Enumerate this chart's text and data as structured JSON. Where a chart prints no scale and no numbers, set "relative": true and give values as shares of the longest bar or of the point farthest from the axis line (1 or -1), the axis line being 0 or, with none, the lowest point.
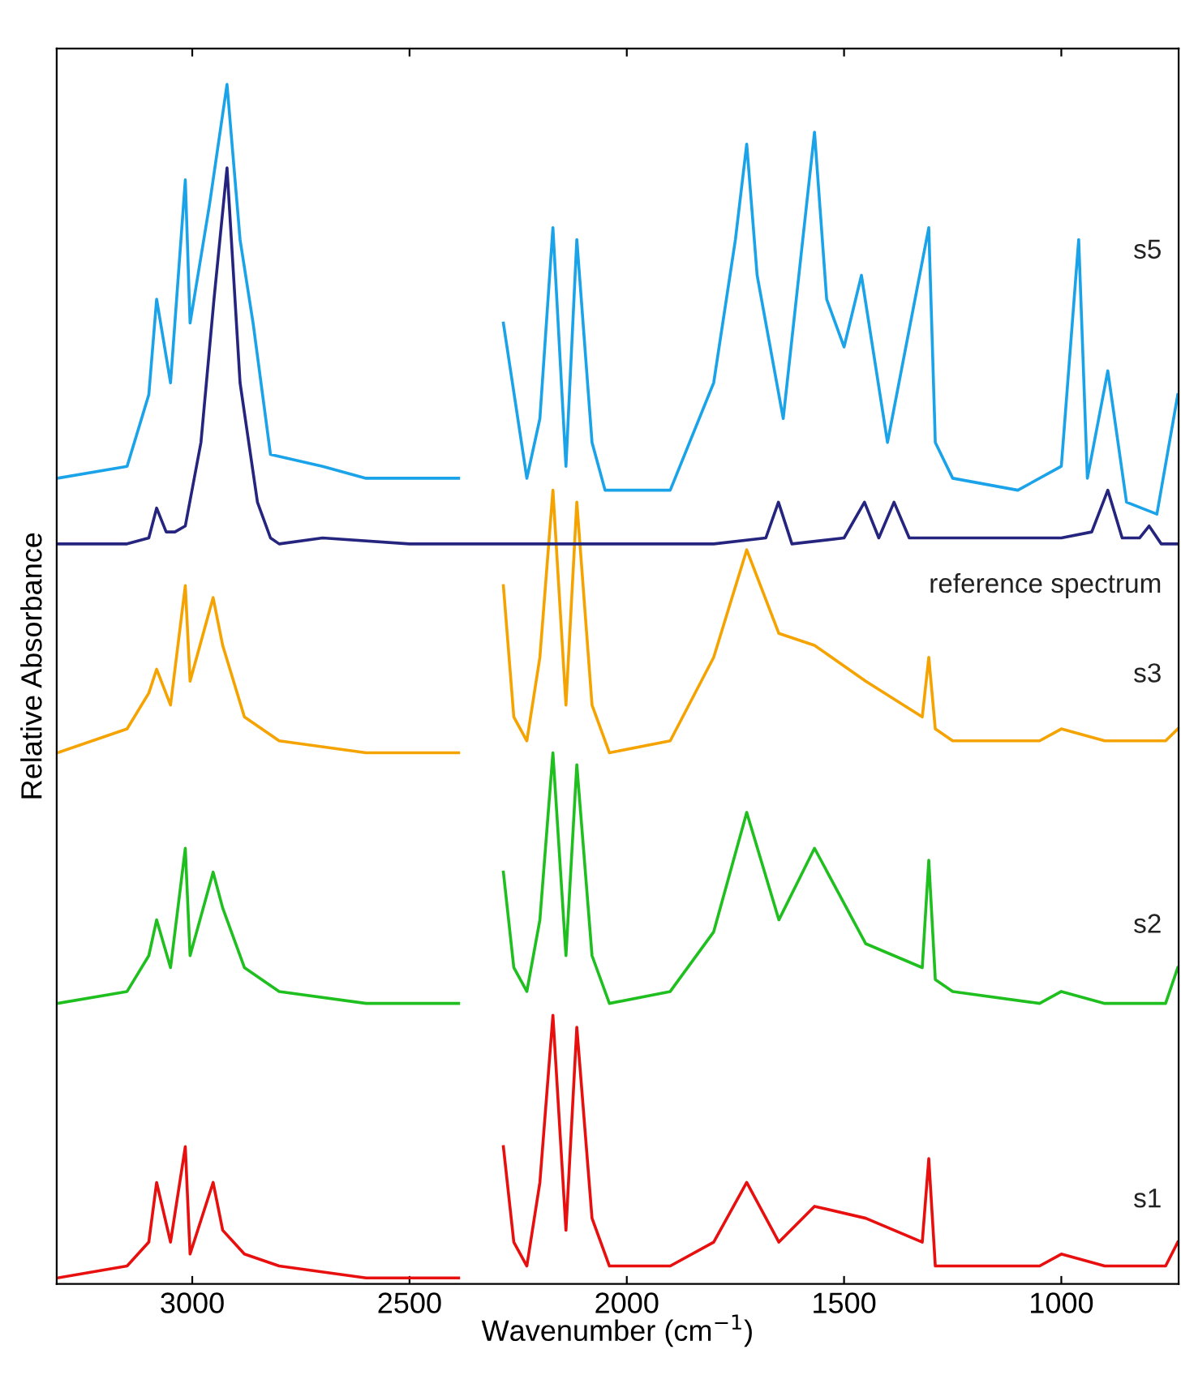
{
  "chart_data": {
    "type": "line",
    "relative": true,
    "xlabel": "Wavenumber (cm$^{−1}$)",
    "ylabel": "Relative Absorbance",
    "xlim": [
      3312,
      730
    ],
    "xticks": [
      3000,
      2500,
      2000,
      1500,
      1000
    ],
    "grid": false,
    "legend": false,
    "tick_labels": "x",
    "marker": "none",
    "line_style": "solid",
    "series": [
      {
        "name": "s1",
        "color": "#e8100f",
        "x": [
          3310,
          3150,
          3100,
          3082,
          3050,
          3016,
          3005,
          2952,
          2930,
          2880,
          2800,
          2600,
          2387,
          2384,
          2284,
          2260,
          2230,
          2200,
          2170,
          2140,
          2115,
          2080,
          2040,
          1900,
          1800,
          1724,
          1650,
          1568,
          1450,
          1320,
          1305,
          1290,
          1250,
          1050,
          1000,
          900,
          760,
          732
        ],
        "values": [
          0.0,
          0.01,
          0.03,
          0.08,
          0.03,
          0.11,
          0.02,
          0.08,
          0.04,
          0.02,
          0.01,
          0.0,
          0.0,
          null,
          0.11,
          0.03,
          0.01,
          0.08,
          0.22,
          0.04,
          0.21,
          0.05,
          0.01,
          0.01,
          0.03,
          0.08,
          0.03,
          0.06,
          0.05,
          0.03,
          0.1,
          0.01,
          0.01,
          0.01,
          0.02,
          0.01,
          0.01,
          0.03
        ]
      },
      {
        "name": "s2",
        "color": "#1fbf1f",
        "x": [
          3310,
          3150,
          3100,
          3082,
          3050,
          3016,
          3005,
          2952,
          2930,
          2880,
          2800,
          2600,
          2387,
          2384,
          2284,
          2260,
          2230,
          2200,
          2170,
          2140,
          2115,
          2080,
          2040,
          1900,
          1800,
          1724,
          1650,
          1568,
          1450,
          1320,
          1305,
          1290,
          1250,
          1050,
          1000,
          900,
          760,
          732
        ],
        "values": [
          0.23,
          0.24,
          0.27,
          0.3,
          0.26,
          0.36,
          0.27,
          0.34,
          0.31,
          0.26,
          0.24,
          0.23,
          0.23,
          null,
          0.34,
          0.26,
          0.24,
          0.3,
          0.44,
          0.27,
          0.43,
          0.27,
          0.23,
          0.24,
          0.29,
          0.39,
          0.3,
          0.36,
          0.28,
          0.26,
          0.35,
          0.25,
          0.24,
          0.23,
          0.24,
          0.23,
          0.23,
          0.26
        ]
      },
      {
        "name": "s3",
        "color": "#f5a300",
        "x": [
          3310,
          3150,
          3100,
          3082,
          3050,
          3016,
          3005,
          2952,
          2930,
          2880,
          2800,
          2600,
          2387,
          2384,
          2284,
          2260,
          2230,
          2200,
          2170,
          2140,
          2115,
          2080,
          2040,
          1900,
          1800,
          1724,
          1650,
          1568,
          1450,
          1320,
          1305,
          1290,
          1250,
          1050,
          1000,
          900,
          760,
          732
        ],
        "values": [
          0.44,
          0.46,
          0.49,
          0.51,
          0.48,
          0.58,
          0.5,
          0.57,
          0.53,
          0.47,
          0.45,
          0.44,
          0.44,
          null,
          0.58,
          0.47,
          0.45,
          0.52,
          0.66,
          0.48,
          0.65,
          0.48,
          0.44,
          0.45,
          0.52,
          0.61,
          0.54,
          0.53,
          0.5,
          0.47,
          0.52,
          0.46,
          0.45,
          0.45,
          0.46,
          0.45,
          0.45,
          0.46
        ]
      },
      {
        "name": "reference spectrum",
        "color": "#25257f",
        "x": [
          3310,
          3150,
          3100,
          3082,
          3060,
          3040,
          3016,
          2980,
          2950,
          2920,
          2890,
          2850,
          2820,
          2800,
          2700,
          2500,
          2200,
          1800,
          1680,
          1651,
          1620,
          1500,
          1453,
          1420,
          1385,
          1350,
          1200,
          1000,
          930,
          893,
          860,
          820,
          798,
          770,
          732
        ],
        "values": [
          0.615,
          0.615,
          0.62,
          0.645,
          0.625,
          0.625,
          0.63,
          0.7,
          0.82,
          0.93,
          0.75,
          0.65,
          0.62,
          0.615,
          0.62,
          0.615,
          0.615,
          0.615,
          0.62,
          0.65,
          0.615,
          0.62,
          0.65,
          0.62,
          0.65,
          0.62,
          0.62,
          0.62,
          0.625,
          0.66,
          0.62,
          0.62,
          0.63,
          0.615,
          0.615
        ]
      },
      {
        "name": "s5",
        "color": "#1aa3e8",
        "x": [
          3310,
          3150,
          3100,
          3082,
          3050,
          3016,
          3005,
          2960,
          2920,
          2890,
          2860,
          2820,
          2700,
          2600,
          2387,
          2384,
          2284,
          2230,
          2200,
          2170,
          2140,
          2115,
          2080,
          2050,
          1900,
          1800,
          1750,
          1724,
          1700,
          1640,
          1568,
          1540,
          1500,
          1460,
          1400,
          1305,
          1290,
          1250,
          1100,
          1000,
          960,
          940,
          893,
          850,
          780,
          732
        ],
        "values": [
          0.67,
          0.68,
          0.74,
          0.82,
          0.75,
          0.92,
          0.8,
          0.9,
          1.0,
          0.87,
          0.8,
          0.69,
          0.68,
          0.67,
          0.67,
          null,
          0.8,
          0.67,
          0.72,
          0.88,
          0.68,
          0.87,
          0.7,
          0.66,
          0.66,
          0.75,
          0.87,
          0.95,
          0.84,
          0.72,
          0.96,
          0.82,
          0.78,
          0.84,
          0.7,
          0.88,
          0.7,
          0.67,
          0.66,
          0.68,
          0.87,
          0.67,
          0.76,
          0.65,
          0.64,
          0.74
        ]
      }
    ]
  }
}
